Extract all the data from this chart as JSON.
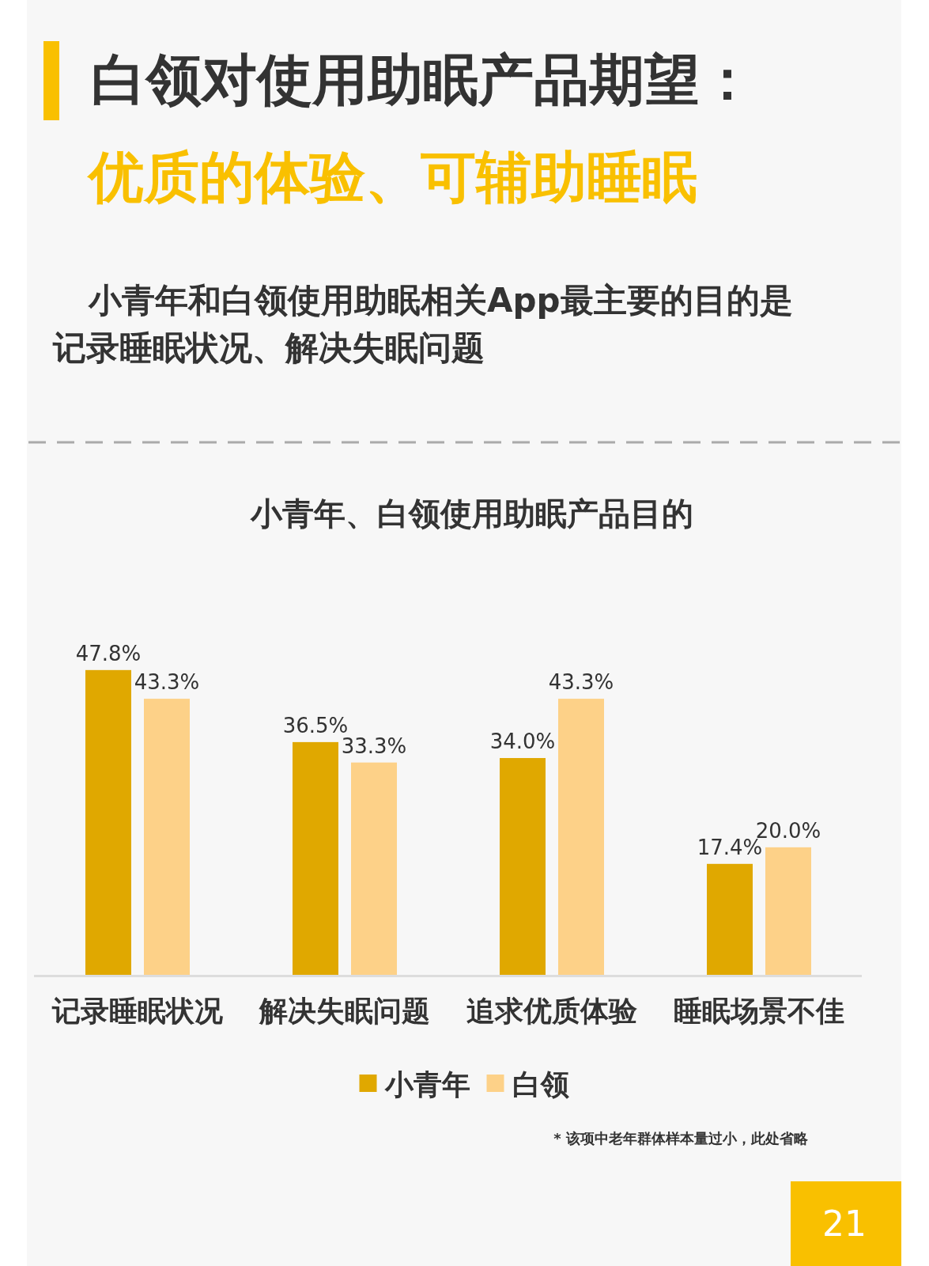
{
  "chart_data": {
    "type": "bar",
    "title": "小青年、白领使用助眠产品目的",
    "categories": [
      "记录睡眠状况",
      "解决失眠问题",
      "追求优质体验",
      "睡眠场景不佳"
    ],
    "series": [
      {
        "name": "小青年",
        "color": "#e0a800",
        "values": [
          47.8,
          36.5,
          34.0,
          17.4
        ],
        "value_labels": [
          "47.8%",
          "36.5%",
          "34.0%",
          "17.4%"
        ]
      },
      {
        "name": "白领",
        "color": "#fdd188",
        "values": [
          43.3,
          33.3,
          43.3,
          20.0
        ],
        "value_labels": [
          "43.3%",
          "33.3%",
          "43.3%",
          "20.0%"
        ]
      }
    ],
    "legend": "bottom",
    "annotations": [
      "白领对使用助眠产品期望：",
      "优质的体验、可辅助睡眠",
      "小青年和白领使用助眠相关App最主要的目的是记录睡眠状况、解决失眠问题",
      "* 该项中老年群体样本量过小，此处省略",
      "21"
    ]
  }
}
